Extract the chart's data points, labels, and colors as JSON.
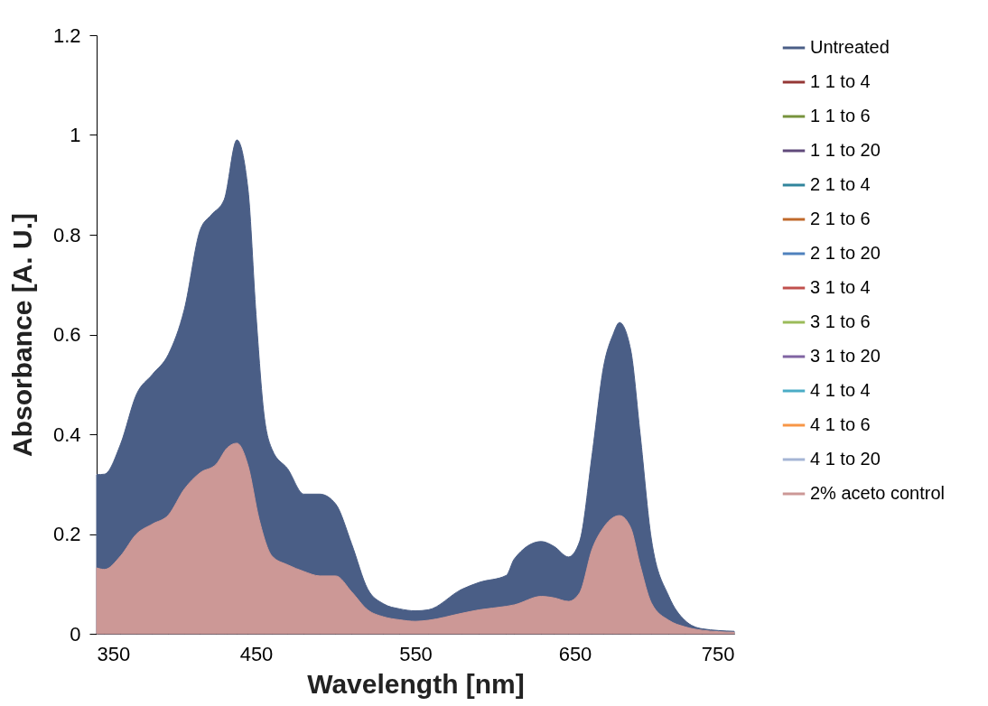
{
  "chart_data": {
    "type": "area",
    "xlabel": "Wavelength [nm]",
    "ylabel": "Absorbance [A. U.]",
    "xlim": [
      350,
      750
    ],
    "xticks": [
      350,
      450,
      550,
      650,
      750
    ],
    "ylim": [
      0,
      1.2
    ],
    "yticks": [
      0,
      0.2,
      0.4,
      0.6,
      0.8,
      1,
      1.2
    ],
    "grid": false,
    "legend": "right",
    "series": [
      {
        "name": "Untreated",
        "color": "#4a5e86",
        "x": [
          350,
          355,
          365,
          375,
          385,
          395,
          405,
          415,
          422,
          430,
          438,
          445,
          450,
          455,
          460,
          470,
          480,
          490,
          500,
          510,
          520,
          530,
          540,
          550,
          558,
          579,
          590,
          607,
          612,
          629,
          637,
          646,
          653,
          661,
          668,
          674,
          678,
          685,
          691,
          698,
          709,
          719,
          730,
          750
        ],
        "values": [
          0.319,
          0.32,
          0.38,
          0.48,
          0.52,
          0.56,
          0.65,
          0.81,
          0.84,
          0.87,
          0.99,
          0.89,
          0.64,
          0.44,
          0.37,
          0.33,
          0.28,
          0.28,
          0.26,
          0.18,
          0.09,
          0.06,
          0.05,
          0.046,
          0.048,
          0.089,
          0.103,
          0.117,
          0.15,
          0.185,
          0.175,
          0.154,
          0.185,
          0.363,
          0.535,
          0.6,
          0.624,
          0.57,
          0.4,
          0.19,
          0.075,
          0.027,
          0.01,
          0.005
        ]
      },
      {
        "name": "1 1 to 4",
        "color": "#953735"
      },
      {
        "name": "1 1 to 6",
        "color": "#77933c"
      },
      {
        "name": "1 1 to 20",
        "color": "#604a7b"
      },
      {
        "name": "2 1 to 4",
        "color": "#31859c"
      },
      {
        "name": "2 1 to 6",
        "color": "#c0692b"
      },
      {
        "name": "2 1 to 20",
        "color": "#4f81bd"
      },
      {
        "name": "3 1 to 4",
        "color": "#c0504d"
      },
      {
        "name": "3 1 to 6",
        "color": "#9bbb59"
      },
      {
        "name": "3 1 to 20",
        "color": "#8064a2"
      },
      {
        "name": "4 1 to 4",
        "color": "#4bacc6"
      },
      {
        "name": "4 1 to 6",
        "color": "#f79646"
      },
      {
        "name": "4 1 to 20",
        "color": "#a5b5d5"
      },
      {
        "name": "2% aceto control",
        "color": "#cc9896",
        "x": [
          350,
          355,
          365,
          375,
          385,
          395,
          405,
          415,
          425,
          432,
          438,
          445,
          452,
          460,
          470,
          480,
          490,
          500,
          510,
          520,
          530,
          540,
          550,
          558,
          579,
          590,
          607,
          612,
          629,
          637,
          646,
          653,
          661,
          668,
          674,
          678,
          685,
          691,
          698,
          709,
          719,
          730,
          750
        ],
        "values": [
          0.132,
          0.129,
          0.156,
          0.2,
          0.22,
          0.238,
          0.29,
          0.323,
          0.34,
          0.373,
          0.382,
          0.337,
          0.229,
          0.156,
          0.138,
          0.125,
          0.116,
          0.116,
          0.084,
          0.048,
          0.034,
          0.028,
          0.025,
          0.027,
          0.041,
          0.048,
          0.055,
          0.058,
          0.075,
          0.072,
          0.065,
          0.082,
          0.171,
          0.213,
          0.233,
          0.237,
          0.213,
          0.137,
          0.062,
          0.027,
          0.014,
          0.007,
          0.003
        ]
      }
    ]
  }
}
